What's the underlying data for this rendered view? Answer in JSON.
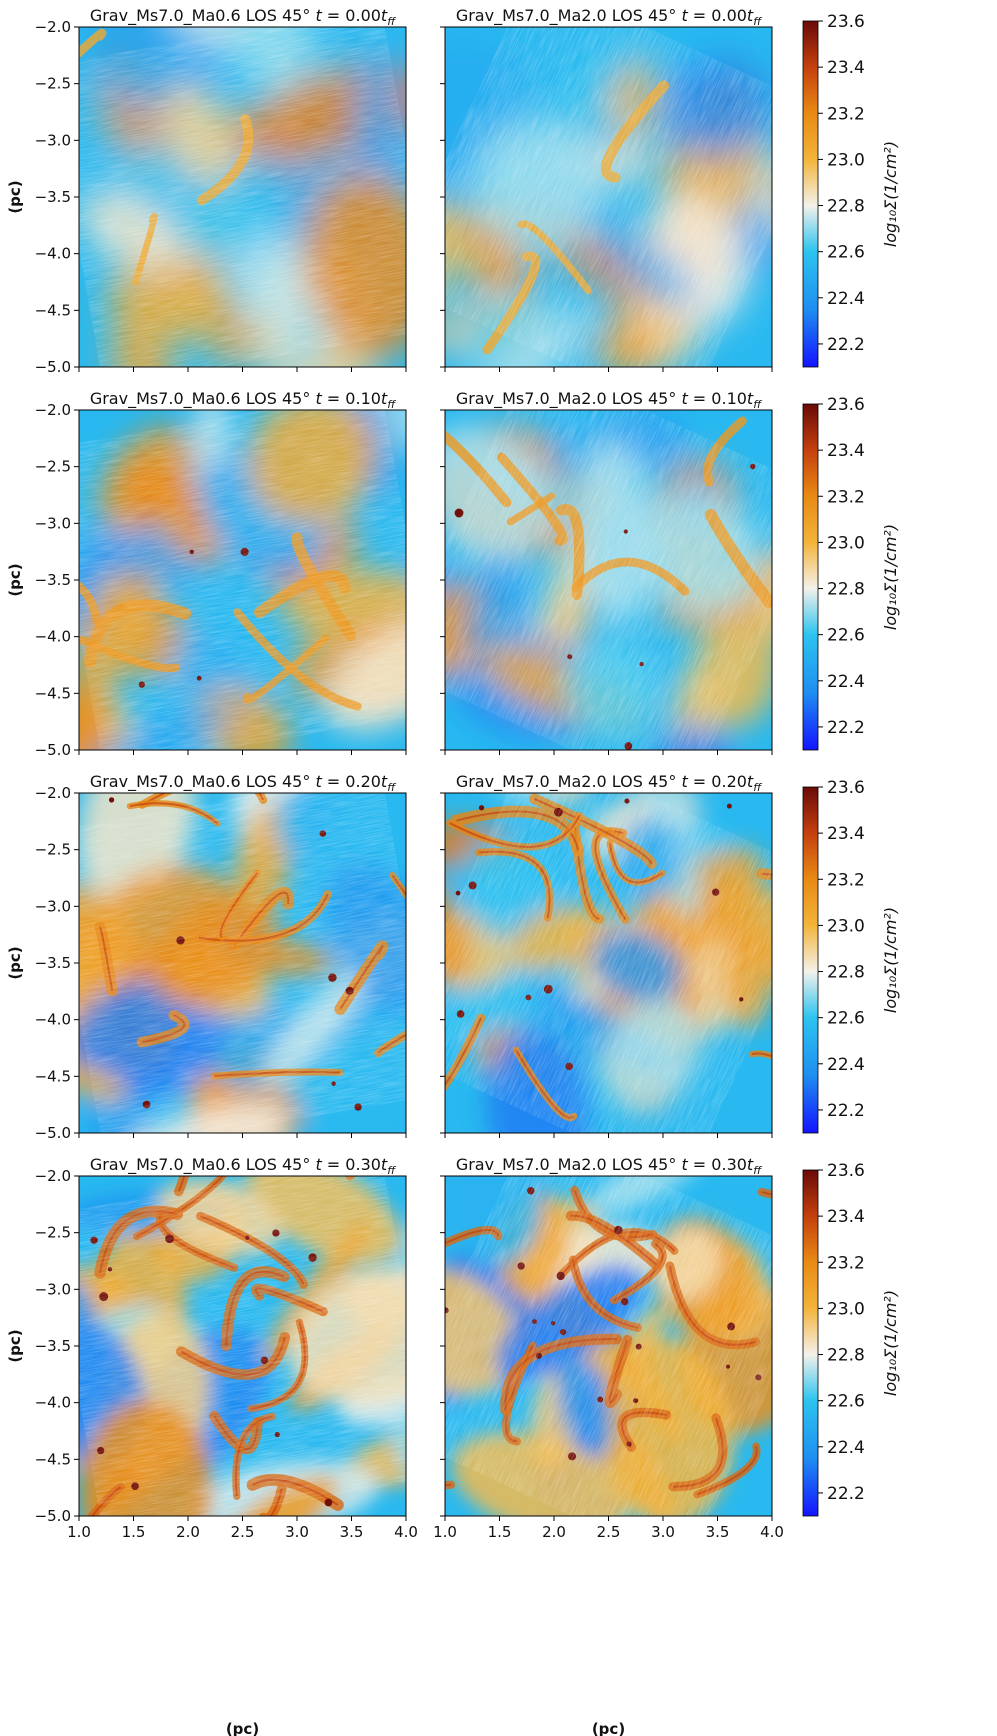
{
  "chart_data": {
    "type": "heatmap",
    "description_rows": 4,
    "description_cols": 2,
    "panels": [
      {
        "id": "p00",
        "row": 0,
        "col": 0,
        "model": "Grav_Ms7.0_Ma0.6",
        "los": "LOS 45",
        "time_value": "0.00",
        "time_unit": "ff",
        "title_text": "Grav_Ms7.0_Ma0.6 LOS 45° t = 0.00t"
      },
      {
        "id": "p01",
        "row": 0,
        "col": 1,
        "model": "Grav_Ms7.0_Ma2.0",
        "los": "LOS 45",
        "time_value": "0.00",
        "time_unit": "ff",
        "title_text": "Grav_Ms7.0_Ma2.0 LOS 45° t = 0.00t"
      },
      {
        "id": "p10",
        "row": 1,
        "col": 0,
        "model": "Grav_Ms7.0_Ma0.6",
        "los": "LOS 45",
        "time_value": "0.10",
        "time_unit": "ff",
        "title_text": "Grav_Ms7.0_Ma0.6 LOS 45° t = 0.10t"
      },
      {
        "id": "p11",
        "row": 1,
        "col": 1,
        "model": "Grav_Ms7.0_Ma2.0",
        "los": "LOS 45",
        "time_value": "0.10",
        "time_unit": "ff",
        "title_text": "Grav_Ms7.0_Ma2.0 LOS 45° t = 0.10t"
      },
      {
        "id": "p20",
        "row": 2,
        "col": 0,
        "model": "Grav_Ms7.0_Ma0.6",
        "los": "LOS 45",
        "time_value": "0.20",
        "time_unit": "ff",
        "title_text": "Grav_Ms7.0_Ma0.6 LOS 45° t = 0.20t"
      },
      {
        "id": "p21",
        "row": 2,
        "col": 1,
        "model": "Grav_Ms7.0_Ma2.0",
        "los": "LOS 45",
        "time_value": "0.20",
        "time_unit": "ff",
        "title_text": "Grav_Ms7.0_Ma2.0 LOS 45° t = 0.20t"
      },
      {
        "id": "p30",
        "row": 3,
        "col": 0,
        "model": "Grav_Ms7.0_Ma0.6",
        "los": "LOS 45",
        "time_value": "0.30",
        "time_unit": "ff",
        "title_text": "Grav_Ms7.0_Ma0.6 LOS 45° t = 0.30t"
      },
      {
        "id": "p31",
        "row": 3,
        "col": 1,
        "model": "Grav_Ms7.0_Ma2.0",
        "los": "LOS 45",
        "time_value": "0.30",
        "time_unit": "ff",
        "title_text": "Grav_Ms7.0_Ma2.0 LOS 45° t = 0.30t"
      }
    ],
    "x_axis": {
      "label": "(pc)",
      "range": [
        1.0,
        4.0
      ],
      "ticks": [
        1.0,
        1.5,
        2.0,
        2.5,
        3.0,
        3.5,
        4.0
      ],
      "tick_labels_left": [
        "1.0",
        "1.5",
        "2.0",
        "2.5",
        "3.0",
        "3.5",
        "4.0"
      ],
      "tick_labels_right": [
        "1.0",
        "1.5",
        "2.0",
        "2.5",
        "3.0",
        "3.5",
        "4.0"
      ]
    },
    "y_axis": {
      "label": "(pc)",
      "range": [
        -5.0,
        -2.0
      ],
      "ticks": [
        -2.0,
        -2.5,
        -3.0,
        -3.5,
        -4.0,
        -4.5,
        -5.0
      ],
      "tick_labels": [
        "−2.0",
        "−2.5",
        "−3.0",
        "−3.5",
        "−4.0",
        "−4.5",
        "−5.0"
      ]
    },
    "colorbar": {
      "label": "log10 Σ(1/cm2)",
      "label_text": "log₁₀Σ(1/cm²)",
      "range": [
        22.1,
        23.6
      ],
      "ticks": [
        22.2,
        22.4,
        22.6,
        22.8,
        23.0,
        23.2,
        23.4,
        23.6
      ],
      "tick_labels": [
        "22.2",
        "22.4",
        "22.6",
        "22.8",
        "23.0",
        "23.2",
        "23.4",
        "23.6"
      ],
      "colormap_stops": [
        {
          "v": 22.1,
          "color": "#1414ff"
        },
        {
          "v": 22.35,
          "color": "#1f8ef0"
        },
        {
          "v": 22.6,
          "color": "#2cc4f0"
        },
        {
          "v": 22.8,
          "color": "#f4f1ea"
        },
        {
          "v": 23.0,
          "color": "#f3b43a"
        },
        {
          "v": 23.2,
          "color": "#e88a14"
        },
        {
          "v": 23.4,
          "color": "#c4400e"
        },
        {
          "v": 23.6,
          "color": "#6a0a08"
        }
      ]
    },
    "overlay": "magnetic field line-integral-convolution texture"
  }
}
